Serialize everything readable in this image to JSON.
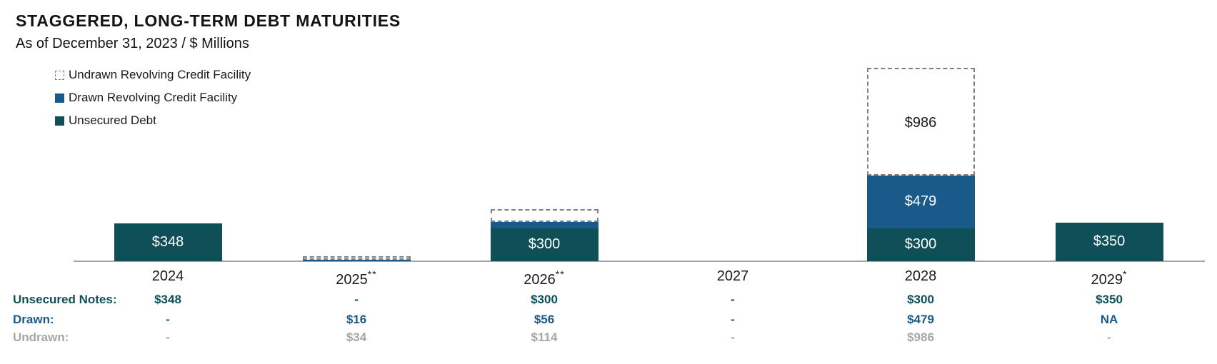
{
  "header": {
    "title": "STAGGERED, LONG-TERM DEBT MATURITIES",
    "subtitle": "As of December 31, 2023 / $ Millions"
  },
  "legend": [
    {
      "label": "Undrawn Revolving Credit Facility",
      "swatch": "undrawn"
    },
    {
      "label": "Drawn Revolving Credit Facility",
      "swatch": "drawn"
    },
    {
      "label": "Unsecured Debt",
      "swatch": "unsecured"
    }
  ],
  "colors": {
    "unsecured_debt": "#0E4F58",
    "drawn_facility": "#1A5A8A",
    "undrawn_outline": "#7f7f7f",
    "axis": "#a6a6a6",
    "muted_text": "#a6a6a6",
    "text": "#1a1a1a"
  },
  "chart_data": {
    "type": "bar",
    "stacked": true,
    "title": "STAGGERED, LONG-TERM DEBT MATURITIES",
    "subtitle": "As of December 31, 2023 / $ Millions",
    "unit": "$ Millions",
    "xlabel": "",
    "ylabel": "",
    "grid": false,
    "legend_position": "top-left",
    "categories": [
      "2024",
      "2025",
      "2026",
      "2027",
      "2028",
      "2029"
    ],
    "category_superscripts": [
      "",
      "**",
      "**",
      "",
      "",
      "*"
    ],
    "series": [
      {
        "name": "Unsecured Debt",
        "key": "unsecured",
        "values": [
          348,
          0,
          300,
          0,
          300,
          350
        ]
      },
      {
        "name": "Drawn Revolving Credit Facility",
        "key": "drawn",
        "values": [
          0,
          16,
          56,
          0,
          479,
          0
        ]
      },
      {
        "name": "Undrawn Revolving Credit Facility",
        "key": "undrawn",
        "values": [
          0,
          34,
          114,
          0,
          986,
          0
        ]
      }
    ],
    "segment_labels": [
      {
        "category_index": 0,
        "segment": "unsecured",
        "text": "$348"
      },
      {
        "category_index": 2,
        "segment": "unsecured",
        "text": "$300"
      },
      {
        "category_index": 4,
        "segment": "unsecured",
        "text": "$300"
      },
      {
        "category_index": 4,
        "segment": "drawn",
        "text": "$479"
      },
      {
        "category_index": 4,
        "segment": "undrawn",
        "text": "$986"
      },
      {
        "category_index": 5,
        "segment": "unsecured",
        "text": "$350"
      }
    ]
  },
  "table": {
    "rows": [
      {
        "key": "unsecured",
        "label": "Unsecured Notes:",
        "values": [
          "$348",
          "-",
          "$300",
          "-",
          "$300",
          "$350"
        ]
      },
      {
        "key": "drawn",
        "label": "Drawn:",
        "values": [
          "-",
          "$16",
          "$56",
          "-",
          "$479",
          "NA"
        ]
      },
      {
        "key": "undrawn",
        "label": "Undrawn:",
        "values": [
          "-",
          "$34",
          "$114",
          "-",
          "$986",
          "-"
        ]
      }
    ]
  }
}
